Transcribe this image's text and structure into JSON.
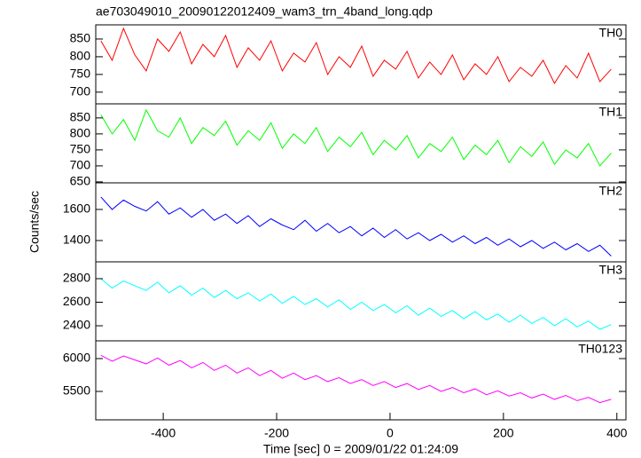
{
  "chart_data": [
    {
      "type": "line",
      "title": "ae703049010_20090122012409_wam3_trn_4band_long.qdp",
      "label": "TH0",
      "color": "#ff0000",
      "xlim": [
        -519,
        416
      ],
      "ylim": [
        667,
        890
      ],
      "yticks": [
        700,
        750,
        800,
        850
      ],
      "x": [
        -510,
        -490,
        -470,
        -450,
        -430,
        -410,
        -390,
        -370,
        -350,
        -330,
        -310,
        -290,
        -270,
        -250,
        -230,
        -210,
        -190,
        -170,
        -150,
        -130,
        -110,
        -90,
        -70,
        -50,
        -30,
        -10,
        10,
        30,
        50,
        70,
        90,
        110,
        130,
        150,
        170,
        190,
        210,
        230,
        250,
        270,
        290,
        310,
        330,
        350,
        370,
        390
      ],
      "values": [
        845,
        790,
        880,
        805,
        760,
        850,
        815,
        870,
        780,
        835,
        800,
        860,
        770,
        825,
        790,
        845,
        760,
        810,
        785,
        840,
        750,
        800,
        770,
        830,
        745,
        790,
        765,
        815,
        740,
        785,
        750,
        805,
        735,
        780,
        750,
        800,
        730,
        770,
        745,
        790,
        725,
        775,
        740,
        810,
        730,
        765
      ]
    },
    {
      "type": "line",
      "label": "TH1",
      "color": "#00ff00",
      "xlim": [
        -519,
        416
      ],
      "ylim": [
        647,
        894
      ],
      "yticks": [
        650,
        700,
        750,
        800,
        850
      ],
      "x": [
        -510,
        -490,
        -470,
        -450,
        -430,
        -410,
        -390,
        -370,
        -350,
        -330,
        -310,
        -290,
        -270,
        -250,
        -230,
        -210,
        -190,
        -170,
        -150,
        -130,
        -110,
        -90,
        -70,
        -50,
        -30,
        -10,
        10,
        30,
        50,
        70,
        90,
        110,
        130,
        150,
        170,
        190,
        210,
        230,
        250,
        270,
        290,
        310,
        330,
        350,
        370,
        390
      ],
      "values": [
        860,
        800,
        845,
        780,
        875,
        810,
        790,
        850,
        770,
        820,
        795,
        840,
        765,
        810,
        780,
        835,
        755,
        800,
        770,
        820,
        745,
        790,
        760,
        805,
        735,
        780,
        750,
        795,
        725,
        770,
        745,
        790,
        720,
        765,
        735,
        780,
        710,
        760,
        730,
        775,
        705,
        750,
        725,
        770,
        700,
        740
      ]
    },
    {
      "type": "line",
      "label": "TH2",
      "color": "#0000ff",
      "y_label": "Counts/sec",
      "xlim": [
        -519,
        416
      ],
      "ylim": [
        1263,
        1771
      ],
      "yticks": [
        1400,
        1600
      ],
      "x": [
        -510,
        -490,
        -470,
        -450,
        -430,
        -410,
        -390,
        -370,
        -350,
        -330,
        -310,
        -290,
        -270,
        -250,
        -230,
        -210,
        -190,
        -170,
        -150,
        -130,
        -110,
        -90,
        -70,
        -50,
        -30,
        -10,
        10,
        30,
        50,
        70,
        90,
        110,
        130,
        150,
        170,
        190,
        210,
        230,
        250,
        270,
        290,
        310,
        330,
        350,
        370,
        390
      ],
      "values": [
        1680,
        1600,
        1660,
        1620,
        1590,
        1650,
        1570,
        1610,
        1550,
        1600,
        1530,
        1570,
        1510,
        1560,
        1490,
        1540,
        1500,
        1470,
        1530,
        1460,
        1510,
        1450,
        1490,
        1430,
        1480,
        1420,
        1470,
        1410,
        1450,
        1400,
        1440,
        1390,
        1430,
        1380,
        1420,
        1370,
        1410,
        1360,
        1400,
        1350,
        1390,
        1340,
        1380,
        1330,
        1370,
        1300
      ]
    },
    {
      "type": "line",
      "label": "TH3",
      "color": "#00ffff",
      "xlim": [
        -519,
        416
      ],
      "ylim": [
        2272,
        2943
      ],
      "yticks": [
        2400,
        2600,
        2800
      ],
      "x": [
        -510,
        -490,
        -470,
        -450,
        -430,
        -410,
        -390,
        -370,
        -350,
        -330,
        -310,
        -290,
        -270,
        -250,
        -230,
        -210,
        -190,
        -170,
        -150,
        -130,
        -110,
        -90,
        -70,
        -50,
        -30,
        -10,
        10,
        30,
        50,
        70,
        90,
        110,
        130,
        150,
        170,
        190,
        210,
        230,
        250,
        270,
        290,
        310,
        330,
        350,
        370,
        390
      ],
      "values": [
        2800,
        2720,
        2780,
        2740,
        2700,
        2770,
        2680,
        2740,
        2660,
        2720,
        2640,
        2700,
        2630,
        2680,
        2610,
        2670,
        2590,
        2650,
        2580,
        2630,
        2560,
        2620,
        2540,
        2600,
        2530,
        2580,
        2510,
        2570,
        2490,
        2550,
        2480,
        2530,
        2460,
        2520,
        2450,
        2500,
        2430,
        2490,
        2420,
        2470,
        2400,
        2460,
        2390,
        2440,
        2370,
        2410
      ]
    },
    {
      "type": "line",
      "label": "TH0123",
      "color": "#ff00ff",
      "x_label": "Time [sec] 0 = 2009/01/22 01:24:09",
      "xlim": [
        -519,
        416
      ],
      "xticks": [
        -400,
        -200,
        0,
        200,
        400
      ],
      "ylim": [
        5068,
        6270
      ],
      "yticks": [
        5500,
        6000
      ],
      "x": [
        -510,
        -490,
        -470,
        -450,
        -430,
        -410,
        -390,
        -370,
        -350,
        -330,
        -310,
        -290,
        -270,
        -250,
        -230,
        -210,
        -190,
        -170,
        -150,
        -130,
        -110,
        -90,
        -70,
        -50,
        -30,
        -10,
        10,
        30,
        50,
        70,
        90,
        110,
        130,
        150,
        170,
        190,
        210,
        230,
        250,
        270,
        290,
        310,
        330,
        350,
        370,
        390
      ],
      "values": [
        6050,
        5960,
        6040,
        5980,
        5920,
        6010,
        5900,
        5970,
        5860,
        5940,
        5820,
        5900,
        5780,
        5860,
        5740,
        5820,
        5700,
        5780,
        5680,
        5740,
        5650,
        5710,
        5620,
        5680,
        5590,
        5650,
        5560,
        5620,
        5530,
        5590,
        5500,
        5560,
        5480,
        5540,
        5450,
        5510,
        5430,
        5480,
        5400,
        5460,
        5380,
        5440,
        5360,
        5410,
        5330,
        5380
      ]
    }
  ]
}
